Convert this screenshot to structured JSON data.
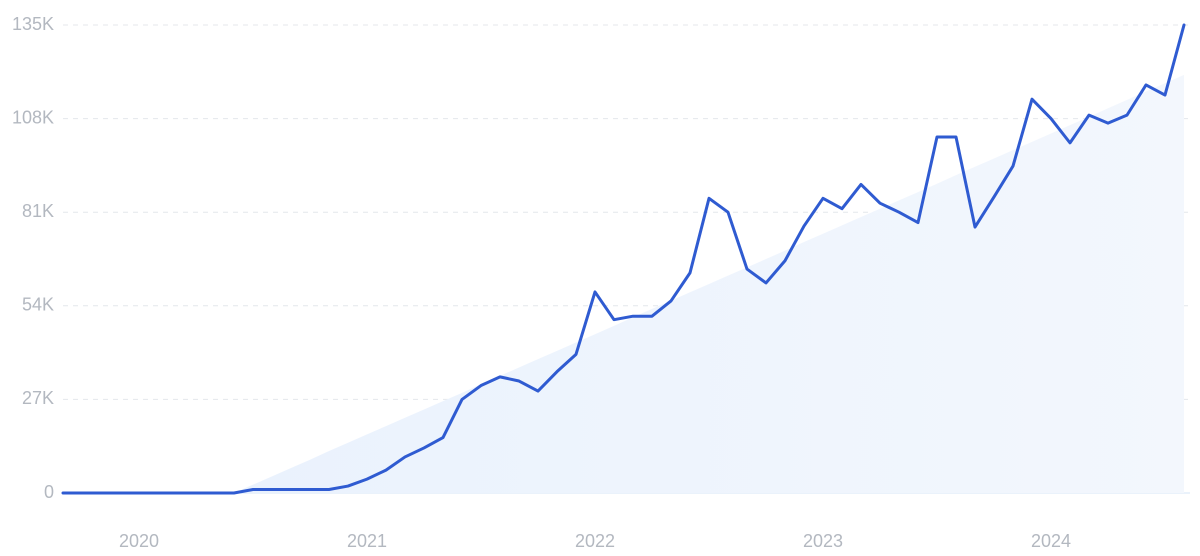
{
  "chart_data": {
    "type": "line",
    "categories": [
      null,
      null,
      null,
      null,
      "2020",
      null,
      null,
      null,
      null,
      null,
      null,
      null,
      null,
      null,
      null,
      null,
      "2021",
      null,
      null,
      null,
      null,
      null,
      null,
      null,
      null,
      null,
      null,
      null,
      "2022",
      null,
      null,
      null,
      null,
      null,
      null,
      null,
      null,
      null,
      null,
      null,
      "2023",
      null,
      null,
      null,
      null,
      null,
      null,
      null,
      null,
      null,
      null,
      null,
      "2024",
      null,
      null,
      null,
      null,
      null,
      null,
      null
    ],
    "values": [
      0,
      0,
      0,
      0,
      0,
      0,
      0,
      0,
      0,
      0,
      1000,
      1000,
      1000,
      1000,
      1000,
      2000,
      4000,
      6600,
      10400,
      13000,
      16000,
      27000,
      31000,
      33500,
      32300,
      29400,
      35000,
      40000,
      58000,
      50000,
      51000,
      51000,
      55400,
      63500,
      85000,
      81000,
      64600,
      60600,
      67000,
      77000,
      85000,
      82000,
      89000,
      83600,
      81000,
      78000,
      102700,
      102700,
      76700,
      85400,
      94300,
      113600,
      108000,
      101000,
      109000,
      106700,
      109000,
      117700,
      114800,
      135000
    ],
    "color": "#2f5bd1",
    "trend": {
      "color": "#e6f0fc",
      "values": [
        null,
        null,
        null,
        null,
        null,
        null,
        null,
        null,
        null,
        0,
        2400,
        4800,
        7200,
        9600,
        12100,
        14500,
        16900,
        19300,
        21700,
        24100,
        26500,
        28900,
        31400,
        33800,
        36200,
        38600,
        41000,
        43400,
        45800,
        48200,
        50700,
        53100,
        55500,
        57900,
        60300,
        62700,
        65100,
        67500,
        69900,
        72400,
        74800,
        77200,
        79600,
        82000,
        84400,
        86800,
        89200,
        91700,
        94100,
        96500,
        98900,
        101300,
        103700,
        106100,
        108500,
        111000,
        113400,
        115800,
        118200,
        120600
      ]
    },
    "ylim": [
      0,
      135000
    ],
    "yticks": [
      0,
      {
        "value": 27000,
        "label": "27K"
      },
      {
        "value": 54000,
        "label": "54K"
      },
      {
        "value": 81000,
        "label": "81K"
      },
      {
        "value": 108000,
        "label": "108K"
      },
      {
        "value": 135000,
        "label": "135K"
      }
    ],
    "grid": true
  }
}
